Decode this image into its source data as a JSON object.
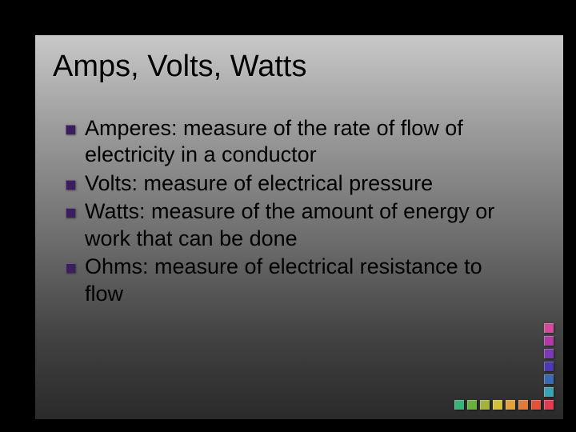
{
  "slide": {
    "title": "Amps, Volts, Watts",
    "title_fontsize": 38,
    "title_color": "#000000",
    "body_fontsize": 27,
    "body_color": "#000000",
    "background_gradient": [
      "#c8c8c8",
      "#9a9a9a",
      "#6a6a6a",
      "#404040",
      "#2a2a2a"
    ],
    "outer_background": "#000000",
    "bullets": [
      {
        "text": "Amperes: measure of the rate of flow of electricity in a conductor",
        "marker_color": "#3a1e5e"
      },
      {
        "text": "Volts: measure of electrical pressure",
        "marker_color": "#3a1e5e"
      },
      {
        "text": "Watts: measure of the amount of energy or work that can be done",
        "marker_color": "#3a1e5e"
      },
      {
        "text": "Ohms: measure of electrical resistance to flow",
        "marker_color": "#3a1e5e"
      }
    ],
    "decoration": {
      "vertical_colors": [
        "#d24a9a",
        "#b23aa6",
        "#7a3ab2",
        "#4a3ab2",
        "#3a6ab2",
        "#3aa2b2"
      ],
      "horizontal_colors": [
        "#3ab27a",
        "#6ab23a",
        "#a2b23a",
        "#d2c23a",
        "#e2a23a",
        "#e27a3a",
        "#e2523a",
        "#e23a52"
      ],
      "square_size": 12
    }
  }
}
